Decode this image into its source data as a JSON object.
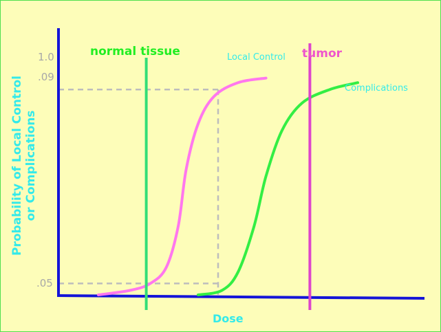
{
  "chart_data": {
    "type": "line",
    "xlabel": "Dose",
    "ylabel": [
      "Probability of Local Control",
      "or Complications"
    ],
    "y_ticks": [
      "1.0",
      ".09",
      ".05"
    ],
    "ylim": [
      0,
      1.05
    ],
    "grid": false,
    "series": [
      {
        "name": "Local Control",
        "color": "#ff77ee",
        "points": [
          [
            1.0,
            0.0
          ],
          [
            1.8,
            0.02
          ],
          [
            2.3,
            0.05
          ],
          [
            2.7,
            0.12
          ],
          [
            3.0,
            0.3
          ],
          [
            3.2,
            0.55
          ],
          [
            3.5,
            0.75
          ],
          [
            3.9,
            0.87
          ],
          [
            4.5,
            0.93
          ],
          [
            5.2,
            0.95
          ]
        ]
      },
      {
        "name": "Complications",
        "color": "#33ee44",
        "points": [
          [
            3.5,
            0.0
          ],
          [
            4.1,
            0.02
          ],
          [
            4.5,
            0.1
          ],
          [
            4.9,
            0.3
          ],
          [
            5.2,
            0.52
          ],
          [
            5.6,
            0.72
          ],
          [
            6.1,
            0.84
          ],
          [
            6.8,
            0.9
          ],
          [
            7.5,
            0.93
          ]
        ]
      }
    ],
    "markers": [
      {
        "label": "normal tissue",
        "x": 2.2,
        "color": "#33dd77",
        "label_color": "#22ee22"
      },
      {
        "label": "tumor",
        "x": 6.3,
        "color": "#dd44cc",
        "label_color": "#ee55cc"
      }
    ],
    "reference_lines": [
      {
        "y": 0.9,
        "x": 4.0
      },
      {
        "y": 0.05,
        "x": 4.0
      }
    ]
  }
}
